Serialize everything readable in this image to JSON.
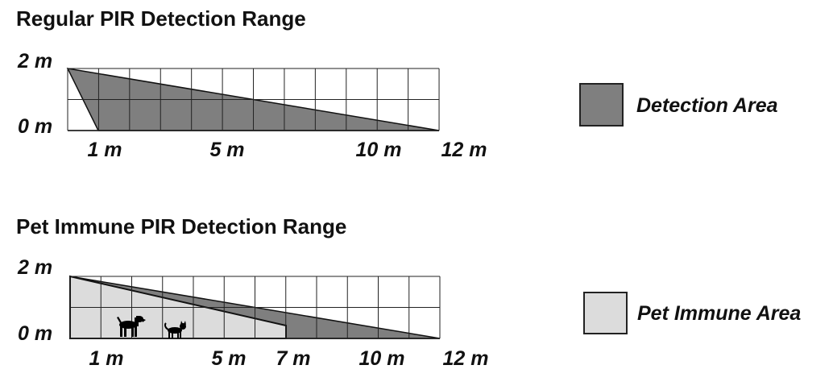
{
  "sections": [
    {
      "title": "Regular PIR Detection Range",
      "y_labels": [
        "2 m",
        "0 m"
      ],
      "x_labels": [
        "1 m",
        "5 m",
        "10 m",
        "12 m"
      ]
    },
    {
      "title": "Pet Immune PIR Detection Range",
      "y_labels": [
        "2 m",
        "0 m"
      ],
      "x_labels": [
        "1 m",
        "5 m",
        "7 m",
        "10 m",
        "12 m"
      ]
    }
  ],
  "legend": [
    {
      "label": "Detection Area",
      "color": "#7f7f7f"
    },
    {
      "label": "Pet Immune Area",
      "color": "#dcdcdc"
    }
  ],
  "icons": [
    "dog-icon",
    "cat-icon"
  ]
}
